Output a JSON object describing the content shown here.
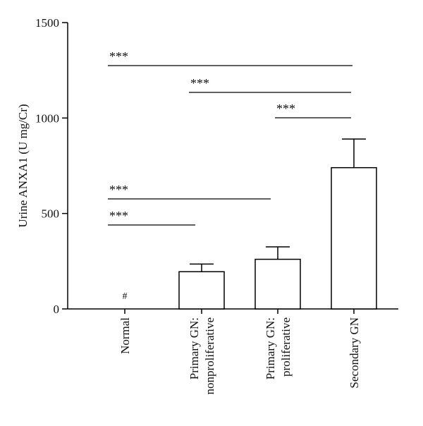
{
  "chart_data": {
    "type": "bar",
    "title": "",
    "xlabel": "",
    "ylabel": "Urine ANXA1 (U mg/Cr)",
    "ylim": [
      0,
      1500
    ],
    "yticks": [
      0,
      500,
      1000,
      1500
    ],
    "categories": [
      [
        "Normal"
      ],
      [
        "Primary GN:",
        "nonproliferative"
      ],
      [
        "Primary GN:",
        "proliferative"
      ],
      [
        "Secondary GN"
      ]
    ],
    "values": [
      0,
      195,
      260,
      740
    ],
    "errors_upper": [
      0,
      235,
      325,
      890
    ],
    "bar_marks": [
      "#",
      "",
      "",
      ""
    ],
    "significance": [
      {
        "from": 0,
        "to": 3,
        "label": "***"
      },
      {
        "from": 1,
        "to": 3,
        "label": "***"
      },
      {
        "from": 2,
        "to": 3,
        "label": "***"
      },
      {
        "from": 0,
        "to": 2,
        "label": "***"
      },
      {
        "from": 0,
        "to": 1,
        "label": "***"
      }
    ],
    "grid": false,
    "colors": {
      "bar_fill": "#ffffff",
      "stroke": "#000000"
    }
  }
}
